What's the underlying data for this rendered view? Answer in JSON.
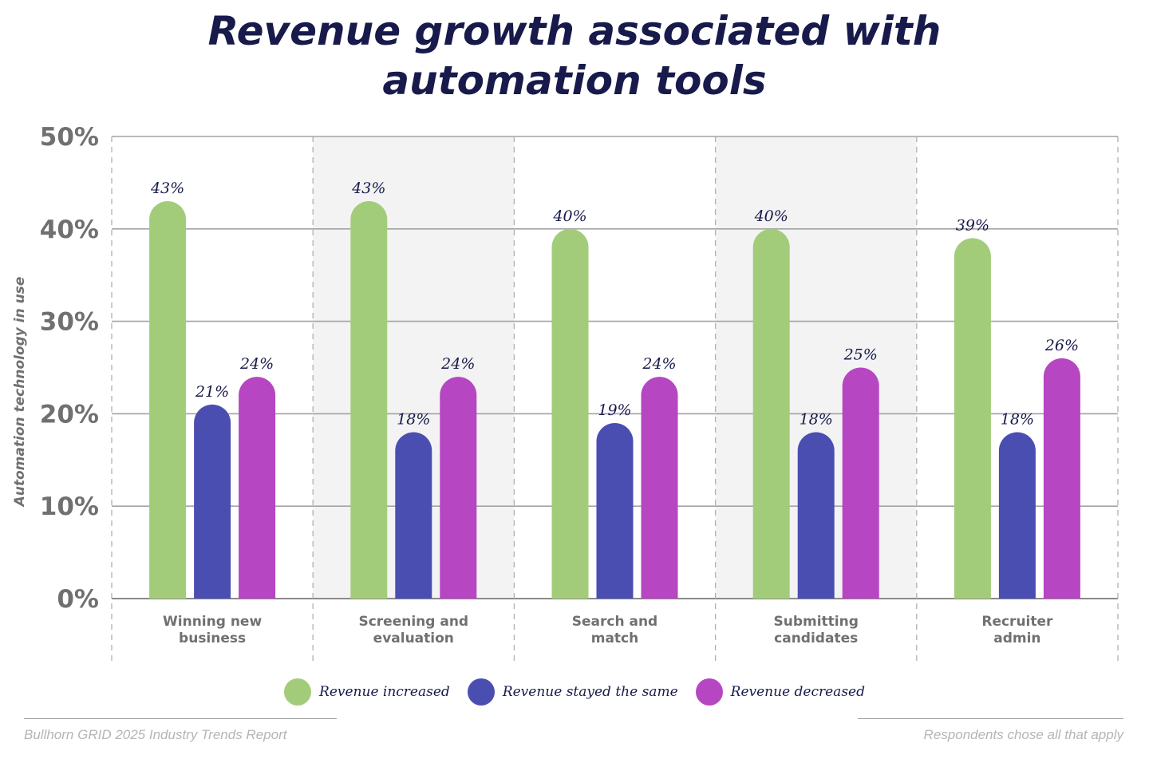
{
  "colors": {
    "increased": "#a3cc7a",
    "same": "#4a4eb0",
    "decreased": "#b646c2",
    "title": "#171a4a",
    "axis_text": "#707070",
    "shade": "#f3f3f3"
  },
  "legend": [
    {
      "label": "Revenue increased",
      "color_key": "increased"
    },
    {
      "label": "Revenue stayed the same",
      "color_key": "same"
    },
    {
      "label": "Revenue decreased",
      "color_key": "decreased"
    }
  ],
  "footer": {
    "source": "Bullhorn GRID 2025 Industry Trends Report",
    "note": "Respondents chose all that apply"
  },
  "chart_data": {
    "type": "bar",
    "title_lines": [
      "Revenue growth associated with",
      "automation tools"
    ],
    "ylabel": "Automation technology in use",
    "xlabel": "",
    "ylim": [
      0,
      50
    ],
    "yticks": [
      0,
      10,
      20,
      30,
      40,
      50
    ],
    "ytick_labels": [
      "0%",
      "10%",
      "20%",
      "30%",
      "40%",
      "50%"
    ],
    "categories": [
      [
        "Winning new",
        "business"
      ],
      [
        "Screening and",
        "evaluation"
      ],
      [
        "Search and",
        "match"
      ],
      [
        "Submitting",
        "candidates"
      ],
      [
        "Recruiter",
        "admin"
      ]
    ],
    "series": [
      {
        "name": "Revenue increased",
        "color_key": "increased",
        "values": [
          43,
          43,
          40,
          40,
          39
        ],
        "labels": [
          "43%",
          "43%",
          "40%",
          "40%",
          "39%"
        ]
      },
      {
        "name": "Revenue stayed the same",
        "color_key": "same",
        "values": [
          21,
          18,
          19,
          18,
          18
        ],
        "labels": [
          "21%",
          "18%",
          "19%",
          "18%",
          "18%"
        ]
      },
      {
        "name": "Revenue decreased",
        "color_key": "decreased",
        "values": [
          24,
          24,
          24,
          25,
          26
        ],
        "labels": [
          "24%",
          "24%",
          "24%",
          "25%",
          "26%"
        ]
      }
    ],
    "grid": true,
    "legend_position": "bottom"
  }
}
